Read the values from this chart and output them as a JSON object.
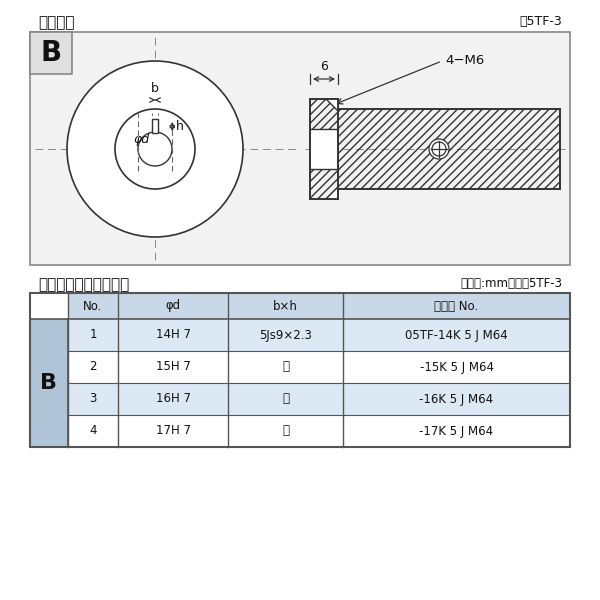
{
  "title_top_left": "軸穴形状",
  "title_top_right": "図5TF-3",
  "diagram_label": "B",
  "dim_b_label": "b",
  "dim_h_label": "h",
  "dim_phi_d_label": "φd",
  "dim_6_label": "6",
  "dim_4m6_label": "4−M6",
  "table_title_left": "軸穴形状コード一覧表",
  "table_title_right": "（単位:mm）　表5TF-3",
  "table_headers": [
    "No.",
    "φd",
    "b×h",
    "コード No."
  ],
  "table_row_label": "B",
  "table_rows": [
    [
      "1",
      "14H 7",
      "5Js9×2.3",
      "05TF-14K 5 J M64"
    ],
    [
      "2",
      "15H 7",
      "〃",
      "-15K 5 J M64"
    ],
    [
      "3",
      "16H 7",
      "〃",
      "-16K 5 J M64"
    ],
    [
      "4",
      "17H 7",
      "〃",
      "-17K 5 J M64"
    ]
  ],
  "bg_color": "#ffffff",
  "diag_box_bg": "#f2f2f2",
  "table_header_bg": "#c8d8e8",
  "table_row_bg_light": "#dce8f4",
  "table_row_bg_white": "#ffffff",
  "table_b_cell_bg": "#b0c4d8",
  "border_color": "#555555",
  "text_color": "#111111",
  "line_color": "#333333",
  "dash_color": "#888888",
  "hatch_lw": 0.5
}
